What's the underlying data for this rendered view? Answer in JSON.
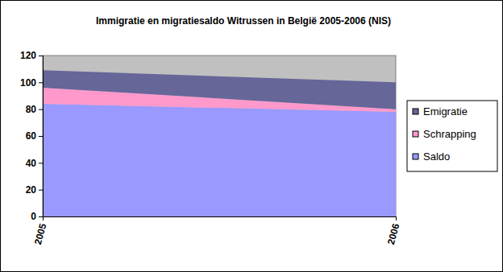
{
  "chart_data": {
    "type": "area",
    "stacked": true,
    "title": "Immigratie en migratiesaldo Witrussen in België 2005-2006 (NIS)",
    "categories": [
      "2005",
      "2006"
    ],
    "series": [
      {
        "name": "Saldo",
        "color": "#9999ff",
        "values": [
          84,
          78
        ]
      },
      {
        "name": "Schrapping",
        "color": "#ff99cc",
        "values": [
          12,
          2
        ]
      },
      {
        "name": "Emigratie",
        "color": "#666699",
        "values": [
          13,
          20
        ]
      }
    ],
    "ylim": [
      0,
      120
    ],
    "yticks": [
      0,
      20,
      40,
      60,
      80,
      100,
      120
    ],
    "legend": "right"
  }
}
